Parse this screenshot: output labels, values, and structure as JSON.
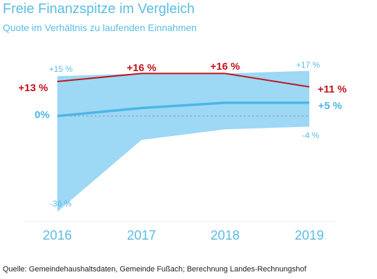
{
  "chart_data": {
    "type": "area",
    "title": "Freie Finanzspitze im Vergleich",
    "subtitle": "Quote im Verhältnis zu laufenden Einnahmen",
    "categories": [
      "2016",
      "2017",
      "2018",
      "2019"
    ],
    "band": {
      "upper": [
        15,
        16,
        16,
        17
      ],
      "lower": [
        -36,
        -9,
        -5,
        -4
      ]
    },
    "series": [
      {
        "values": [
          13,
          16,
          16,
          11
        ],
        "labels": [
          "+13 %",
          "+16 %",
          "+16 %",
          "+11 %"
        ],
        "color": "#c0131b"
      },
      {
        "values": [
          0,
          3,
          5,
          5
        ],
        "labels": [
          "0%",
          "",
          "",
          "+5 %"
        ],
        "color": "#4cb6e6"
      }
    ],
    "range_labels": {
      "top_2016": "+15 %",
      "bottom_2016": "-36 %",
      "top_2019": "+17 %",
      "bottom_2019": "-4 %"
    },
    "ylim": [
      -40,
      20
    ],
    "zero_line": "dashed",
    "band_color": "#9dd8f5",
    "source": "Quelle: Gemeindehaushaltsdaten, Gemeinde Fußach; Berechnung Landes-Rechnungshof"
  }
}
